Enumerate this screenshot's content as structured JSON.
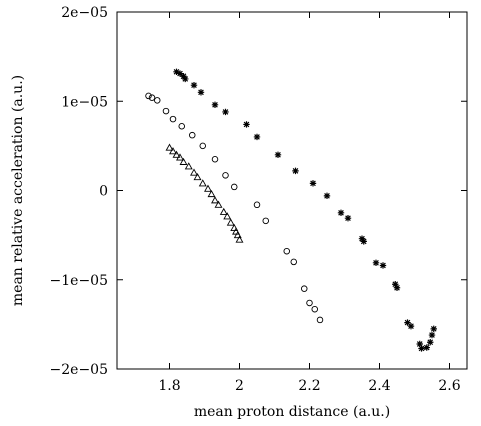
{
  "chart_data": {
    "type": "scatter",
    "title": "",
    "xlabel": "mean proton distance (a.u.)",
    "ylabel": "mean relative acceleration (a.u.)",
    "xlim": [
      1.65,
      2.65
    ],
    "ylim": [
      -2e-05,
      2e-05
    ],
    "xticks": [
      1.8,
      2.0,
      2.2,
      2.4,
      2.6
    ],
    "xtick_labels": [
      "1.8",
      "2",
      "2.2",
      "2.4",
      "2.6"
    ],
    "yticks": [
      -2e-05,
      -1e-05,
      0,
      1e-05,
      2e-05
    ],
    "ytick_labels": [
      "−2e−05",
      "−1e−05",
      "0",
      "1e−05",
      "2e−05"
    ],
    "grid": false,
    "legend": "none",
    "series": [
      {
        "marker": "asterisk",
        "points": [
          [
            1.82,
            1.33e-05
          ],
          [
            1.83,
            1.31e-05
          ],
          [
            1.84,
            1.28e-05
          ],
          [
            1.845,
            1.25e-05
          ],
          [
            1.87,
            1.18e-05
          ],
          [
            1.89,
            1.1e-05
          ],
          [
            1.93,
            9.6e-06
          ],
          [
            1.96,
            8.8e-06
          ],
          [
            2.02,
            7.4e-06
          ],
          [
            2.05,
            6e-06
          ],
          [
            2.11,
            4e-06
          ],
          [
            2.16,
            2.2e-06
          ],
          [
            2.21,
            8e-07
          ],
          [
            2.25,
            -6e-07
          ],
          [
            2.29,
            -2.5e-06
          ],
          [
            2.31,
            -3.1e-06
          ],
          [
            2.35,
            -5.4e-06
          ],
          [
            2.355,
            -5.7e-06
          ],
          [
            2.39,
            -8.1e-06
          ],
          [
            2.41,
            -8.4e-06
          ],
          [
            2.445,
            -1.05e-05
          ],
          [
            2.45,
            -1.09e-05
          ],
          [
            2.48,
            -1.48e-05
          ],
          [
            2.49,
            -1.52e-05
          ],
          [
            2.515,
            -1.72e-05
          ],
          [
            2.52,
            -1.77e-05
          ],
          [
            2.535,
            -1.76e-05
          ],
          [
            2.545,
            -1.7e-05
          ],
          [
            2.55,
            -1.62e-05
          ],
          [
            2.555,
            -1.55e-05
          ]
        ]
      },
      {
        "marker": "circle",
        "points": [
          [
            1.74,
            1.06e-05
          ],
          [
            1.75,
            1.04e-05
          ],
          [
            1.765,
            1.01e-05
          ],
          [
            1.79,
            8.9e-06
          ],
          [
            1.81,
            8e-06
          ],
          [
            1.835,
            7.2e-06
          ],
          [
            1.865,
            6.2e-06
          ],
          [
            1.895,
            5e-06
          ],
          [
            1.93,
            3.5e-06
          ],
          [
            1.96,
            1.7e-06
          ],
          [
            1.985,
            4e-07
          ],
          [
            2.05,
            -1.6e-06
          ],
          [
            2.075,
            -3.4e-06
          ],
          [
            2.135,
            -6.8e-06
          ],
          [
            2.155,
            -8e-06
          ],
          [
            2.185,
            -1.1e-05
          ],
          [
            2.2,
            -1.26e-05
          ],
          [
            2.215,
            -1.33e-05
          ],
          [
            2.23,
            -1.45e-05
          ]
        ]
      },
      {
        "marker": "triangle",
        "points": [
          [
            1.8,
            4.8e-06
          ],
          [
            1.81,
            4.4e-06
          ],
          [
            1.82,
            4e-06
          ],
          [
            1.83,
            3.7e-06
          ],
          [
            1.84,
            3.2e-06
          ],
          [
            1.855,
            2.7e-06
          ],
          [
            1.87,
            2e-06
          ],
          [
            1.88,
            1.5e-06
          ],
          [
            1.895,
            8e-07
          ],
          [
            1.91,
            2e-07
          ],
          [
            1.92,
            -4e-07
          ],
          [
            1.93,
            -1.1e-06
          ],
          [
            1.94,
            -1.6e-06
          ],
          [
            1.955,
            -2.4e-06
          ],
          [
            1.965,
            -2.9e-06
          ],
          [
            1.975,
            -3.6e-06
          ],
          [
            1.985,
            -4.2e-06
          ],
          [
            1.99,
            -4.6e-06
          ],
          [
            1.995,
            -5e-06
          ],
          [
            2.0,
            -5.5e-06
          ]
        ]
      }
    ]
  }
}
